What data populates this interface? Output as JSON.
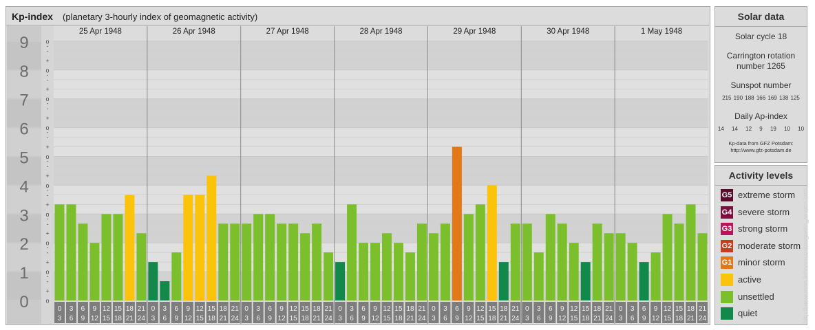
{
  "header": {
    "title": "Kp-index",
    "subtitle": "(planetary 3-hourly index of geomagnetic activity)"
  },
  "chart_data": {
    "type": "bar",
    "title": "Kp-index",
    "subtitle": "(planetary 3-hourly index of geomagnetic activity)",
    "ylim": [
      0,
      9
    ],
    "y_ticks": [
      "0",
      "1",
      "2",
      "3",
      "4",
      "5",
      "6",
      "7",
      "8",
      "9"
    ],
    "y_minor_ticks": [
      "+",
      "o",
      "-"
    ],
    "days": [
      "25 Apr 1948",
      "26 Apr 1948",
      "27 Apr 1948",
      "28 Apr 1948",
      "29 Apr 1948",
      "30 Apr 1948",
      "1 May 1948"
    ],
    "slot_labels_top": [
      "0",
      "3",
      "6",
      "9",
      "12",
      "15",
      "18",
      "21"
    ],
    "slot_labels_bottom": [
      "3",
      "6",
      "9",
      "12",
      "15",
      "18",
      "21",
      "24"
    ],
    "values": [
      3.333,
      3.333,
      2.667,
      2.0,
      3.0,
      3.0,
      3.667,
      2.333,
      1.333,
      0.667,
      1.667,
      3.667,
      3.667,
      4.333,
      2.667,
      2.667,
      2.667,
      3.0,
      3.0,
      2.667,
      2.667,
      2.333,
      2.667,
      1.667,
      1.333,
      3.333,
      2.0,
      2.0,
      2.333,
      2.0,
      1.667,
      2.667,
      2.333,
      2.667,
      5.333,
      3.0,
      3.333,
      4.0,
      1.333,
      2.667,
      2.667,
      1.667,
      3.0,
      2.667,
      2.0,
      1.333,
      2.667,
      2.333,
      2.333,
      2.0,
      1.333,
      1.667,
      3.0,
      2.667,
      3.333,
      2.333
    ],
    "thresholds": {
      "quiet_max": 1.5,
      "unsettled_max": 3.5,
      "active_max": 4.5,
      "G1_max": 5.5,
      "G2_max": 6.5,
      "G3_max": 7.5,
      "G4_max": 8.5
    },
    "grid": true
  },
  "solar": {
    "title": "Solar data",
    "cycle": "Solar cycle 18",
    "carrington": "Carrington rotation number 1265",
    "sunspot_title": "Sunspot number",
    "sunspot_values": "215 190 188 166 169 138 125",
    "ap_title": "Daily Ap-index",
    "ap_values": "14 14 12 9 19 10 10",
    "source_line1": "Kp-data from GFZ Potsdam:",
    "source_line2": "http://www.gfz-potsdam.de"
  },
  "activity": {
    "title": "Activity levels",
    "items": [
      {
        "code": "G5",
        "label": "extreme storm",
        "color": "#5a0a2a"
      },
      {
        "code": "G4",
        "label": "severe storm",
        "color": "#7a1040"
      },
      {
        "code": "G3",
        "label": "strong storm",
        "color": "#b01a5a"
      },
      {
        "code": "G2",
        "label": "moderate storm",
        "color": "#c83c1e"
      },
      {
        "code": "G1",
        "label": "minor storm",
        "color": "#e27818"
      },
      {
        "code": "",
        "label": "active",
        "color": "#fbc40a"
      },
      {
        "code": "",
        "label": "unsettled",
        "color": "#7cbf2c"
      },
      {
        "code": "",
        "label": "quiet",
        "color": "#12884a"
      }
    ]
  },
  "colors": {
    "quiet": "#12884a",
    "unsettled": "#7cbf2c",
    "active": "#fbc40a",
    "G1": "#e27818",
    "G2": "#c83c1e",
    "G3": "#b01a5a",
    "G4": "#7a1040",
    "G5": "#5a0a2a"
  },
  "watermark": "http://www.tesis.lebedev.ru/magnetic_storms.html"
}
